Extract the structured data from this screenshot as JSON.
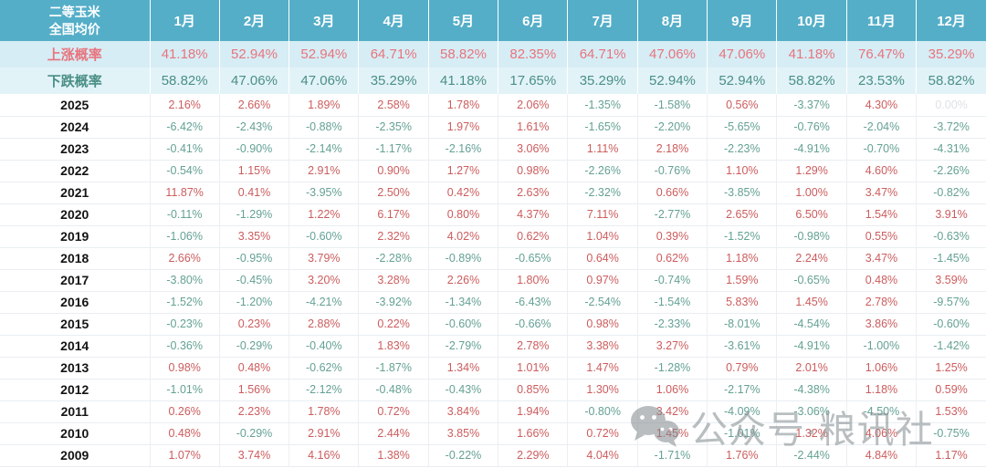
{
  "colors": {
    "header_teal": "#54AEC8",
    "rise_row_bg": "#D6EDF5",
    "fall_row_bg": "#E2F3F8",
    "probability_rise_red": "#E8747E",
    "probability_fall_green": "#4A8F85",
    "positive_value_red": "#CC5C5D",
    "negative_value_green": "#64A194",
    "zero_value_gray": "#DDE2E5"
  },
  "watermark": {
    "icon": "wechat-icon",
    "text": "公众号·粮讯社"
  },
  "chart_data": {
    "type": "table",
    "corner_header": [
      "二等玉米",
      "全国均价"
    ],
    "columns": [
      "1月",
      "2月",
      "3月",
      "4月",
      "5月",
      "6月",
      "7月",
      "8月",
      "9月",
      "10月",
      "11月",
      "12月"
    ],
    "probability_rows": [
      {
        "label": "上涨概率",
        "tone": "rise",
        "values": [
          "41.18%",
          "52.94%",
          "52.94%",
          "64.71%",
          "58.82%",
          "82.35%",
          "64.71%",
          "47.06%",
          "47.06%",
          "41.18%",
          "76.47%",
          "35.29%"
        ]
      },
      {
        "label": "下跌概率",
        "tone": "fall",
        "values": [
          "58.82%",
          "47.06%",
          "47.06%",
          "35.29%",
          "41.18%",
          "17.65%",
          "35.29%",
          "52.94%",
          "52.94%",
          "58.82%",
          "23.53%",
          "58.82%"
        ]
      }
    ],
    "year_rows": [
      {
        "year": "2025",
        "values": [
          "2.16%",
          "2.66%",
          "1.89%",
          "2.58%",
          "1.78%",
          "2.06%",
          "-1.35%",
          "-1.58%",
          "0.56%",
          "-3.37%",
          "4.30%",
          "0.00%"
        ]
      },
      {
        "year": "2024",
        "values": [
          "-6.42%",
          "-2.43%",
          "-0.88%",
          "-2.35%",
          "1.97%",
          "1.61%",
          "-1.65%",
          "-2.20%",
          "-5.65%",
          "-0.76%",
          "-2.04%",
          "-3.72%"
        ]
      },
      {
        "year": "2023",
        "values": [
          "-0.41%",
          "-0.90%",
          "-2.14%",
          "-1.17%",
          "-2.16%",
          "3.06%",
          "1.11%",
          "2.18%",
          "-2.23%",
          "-4.91%",
          "-0.70%",
          "-4.31%"
        ]
      },
      {
        "year": "2022",
        "values": [
          "-0.54%",
          "1.15%",
          "2.91%",
          "0.90%",
          "1.27%",
          "0.98%",
          "-2.26%",
          "-0.76%",
          "1.10%",
          "1.29%",
          "4.60%",
          "-2.26%"
        ]
      },
      {
        "year": "2021",
        "values": [
          "11.87%",
          "0.41%",
          "-3.95%",
          "2.50%",
          "0.42%",
          "2.63%",
          "-2.32%",
          "0.66%",
          "-3.85%",
          "1.00%",
          "3.47%",
          "-0.82%"
        ]
      },
      {
        "year": "2020",
        "values": [
          "-0.11%",
          "-1.29%",
          "1.22%",
          "6.17%",
          "0.80%",
          "4.37%",
          "7.11%",
          "-2.77%",
          "2.65%",
          "6.50%",
          "1.54%",
          "3.91%"
        ]
      },
      {
        "year": "2019",
        "values": [
          "-1.06%",
          "3.35%",
          "-0.60%",
          "2.32%",
          "4.02%",
          "0.62%",
          "1.04%",
          "0.39%",
          "-1.52%",
          "-0.98%",
          "0.55%",
          "-0.63%"
        ]
      },
      {
        "year": "2018",
        "values": [
          "2.66%",
          "-0.95%",
          "3.79%",
          "-2.28%",
          "-0.89%",
          "-0.65%",
          "0.64%",
          "0.62%",
          "1.18%",
          "2.24%",
          "3.47%",
          "-1.45%"
        ]
      },
      {
        "year": "2017",
        "values": [
          "-3.80%",
          "-0.45%",
          "3.20%",
          "3.28%",
          "2.26%",
          "1.80%",
          "0.97%",
          "-0.74%",
          "1.59%",
          "-0.65%",
          "0.48%",
          "3.59%"
        ]
      },
      {
        "year": "2016",
        "values": [
          "-1.52%",
          "-1.20%",
          "-4.21%",
          "-3.92%",
          "-1.34%",
          "-6.43%",
          "-2.54%",
          "-1.54%",
          "5.83%",
          "1.45%",
          "2.78%",
          "-9.57%"
        ]
      },
      {
        "year": "2015",
        "values": [
          "-0.23%",
          "0.23%",
          "2.88%",
          "0.22%",
          "-0.60%",
          "-0.66%",
          "0.98%",
          "-2.33%",
          "-8.01%",
          "-4.54%",
          "3.86%",
          "-0.60%"
        ]
      },
      {
        "year": "2014",
        "values": [
          "-0.36%",
          "-0.29%",
          "-0.40%",
          "1.83%",
          "-2.79%",
          "2.78%",
          "3.38%",
          "3.27%",
          "-3.61%",
          "-4.91%",
          "-1.00%",
          "-1.42%"
        ]
      },
      {
        "year": "2013",
        "values": [
          "0.98%",
          "0.48%",
          "-0.62%",
          "-1.87%",
          "1.34%",
          "1.01%",
          "1.47%",
          "-1.28%",
          "0.79%",
          "2.01%",
          "1.06%",
          "1.25%"
        ]
      },
      {
        "year": "2012",
        "values": [
          "-1.01%",
          "1.56%",
          "-2.12%",
          "-0.48%",
          "-0.43%",
          "0.85%",
          "1.30%",
          "1.06%",
          "-2.17%",
          "-4.38%",
          "1.18%",
          "0.59%"
        ]
      },
      {
        "year": "2011",
        "values": [
          "0.26%",
          "2.23%",
          "1.78%",
          "0.72%",
          "3.84%",
          "1.94%",
          "-0.80%",
          "3.42%",
          "-4.09%",
          "-3.06%",
          "-4.50%",
          "1.53%"
        ]
      },
      {
        "year": "2010",
        "values": [
          "0.48%",
          "-0.29%",
          "2.91%",
          "2.44%",
          "3.85%",
          "1.66%",
          "0.72%",
          "1.45%",
          "-1.01%",
          "1.32%",
          "4.06%",
          "-0.75%"
        ]
      },
      {
        "year": "2009",
        "values": [
          "1.07%",
          "3.74%",
          "4.16%",
          "1.38%",
          "-0.22%",
          "2.29%",
          "4.04%",
          "-1.71%",
          "1.76%",
          "-2.44%",
          "4.84%",
          "1.17%"
        ]
      }
    ]
  }
}
